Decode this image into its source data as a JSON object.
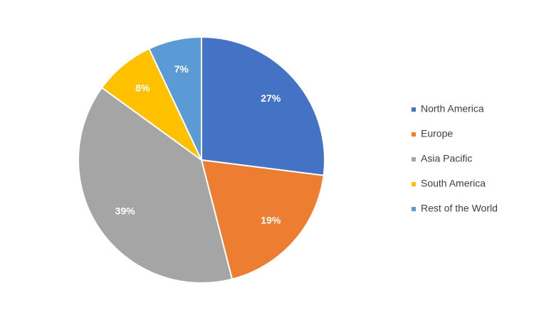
{
  "chart_data": {
    "type": "pie",
    "categories": [
      "North America",
      "Europe",
      "Asia Pacific",
      "South America",
      "Rest of the World"
    ],
    "values": [
      27,
      19,
      39,
      8,
      7
    ],
    "value_labels": [
      "27%",
      "19%",
      "39%",
      "8%",
      "7%"
    ],
    "colors": [
      "#4472c4",
      "#ed7d31",
      "#a5a5a5",
      "#ffc000",
      "#5b9bd5"
    ],
    "legend": "right"
  }
}
